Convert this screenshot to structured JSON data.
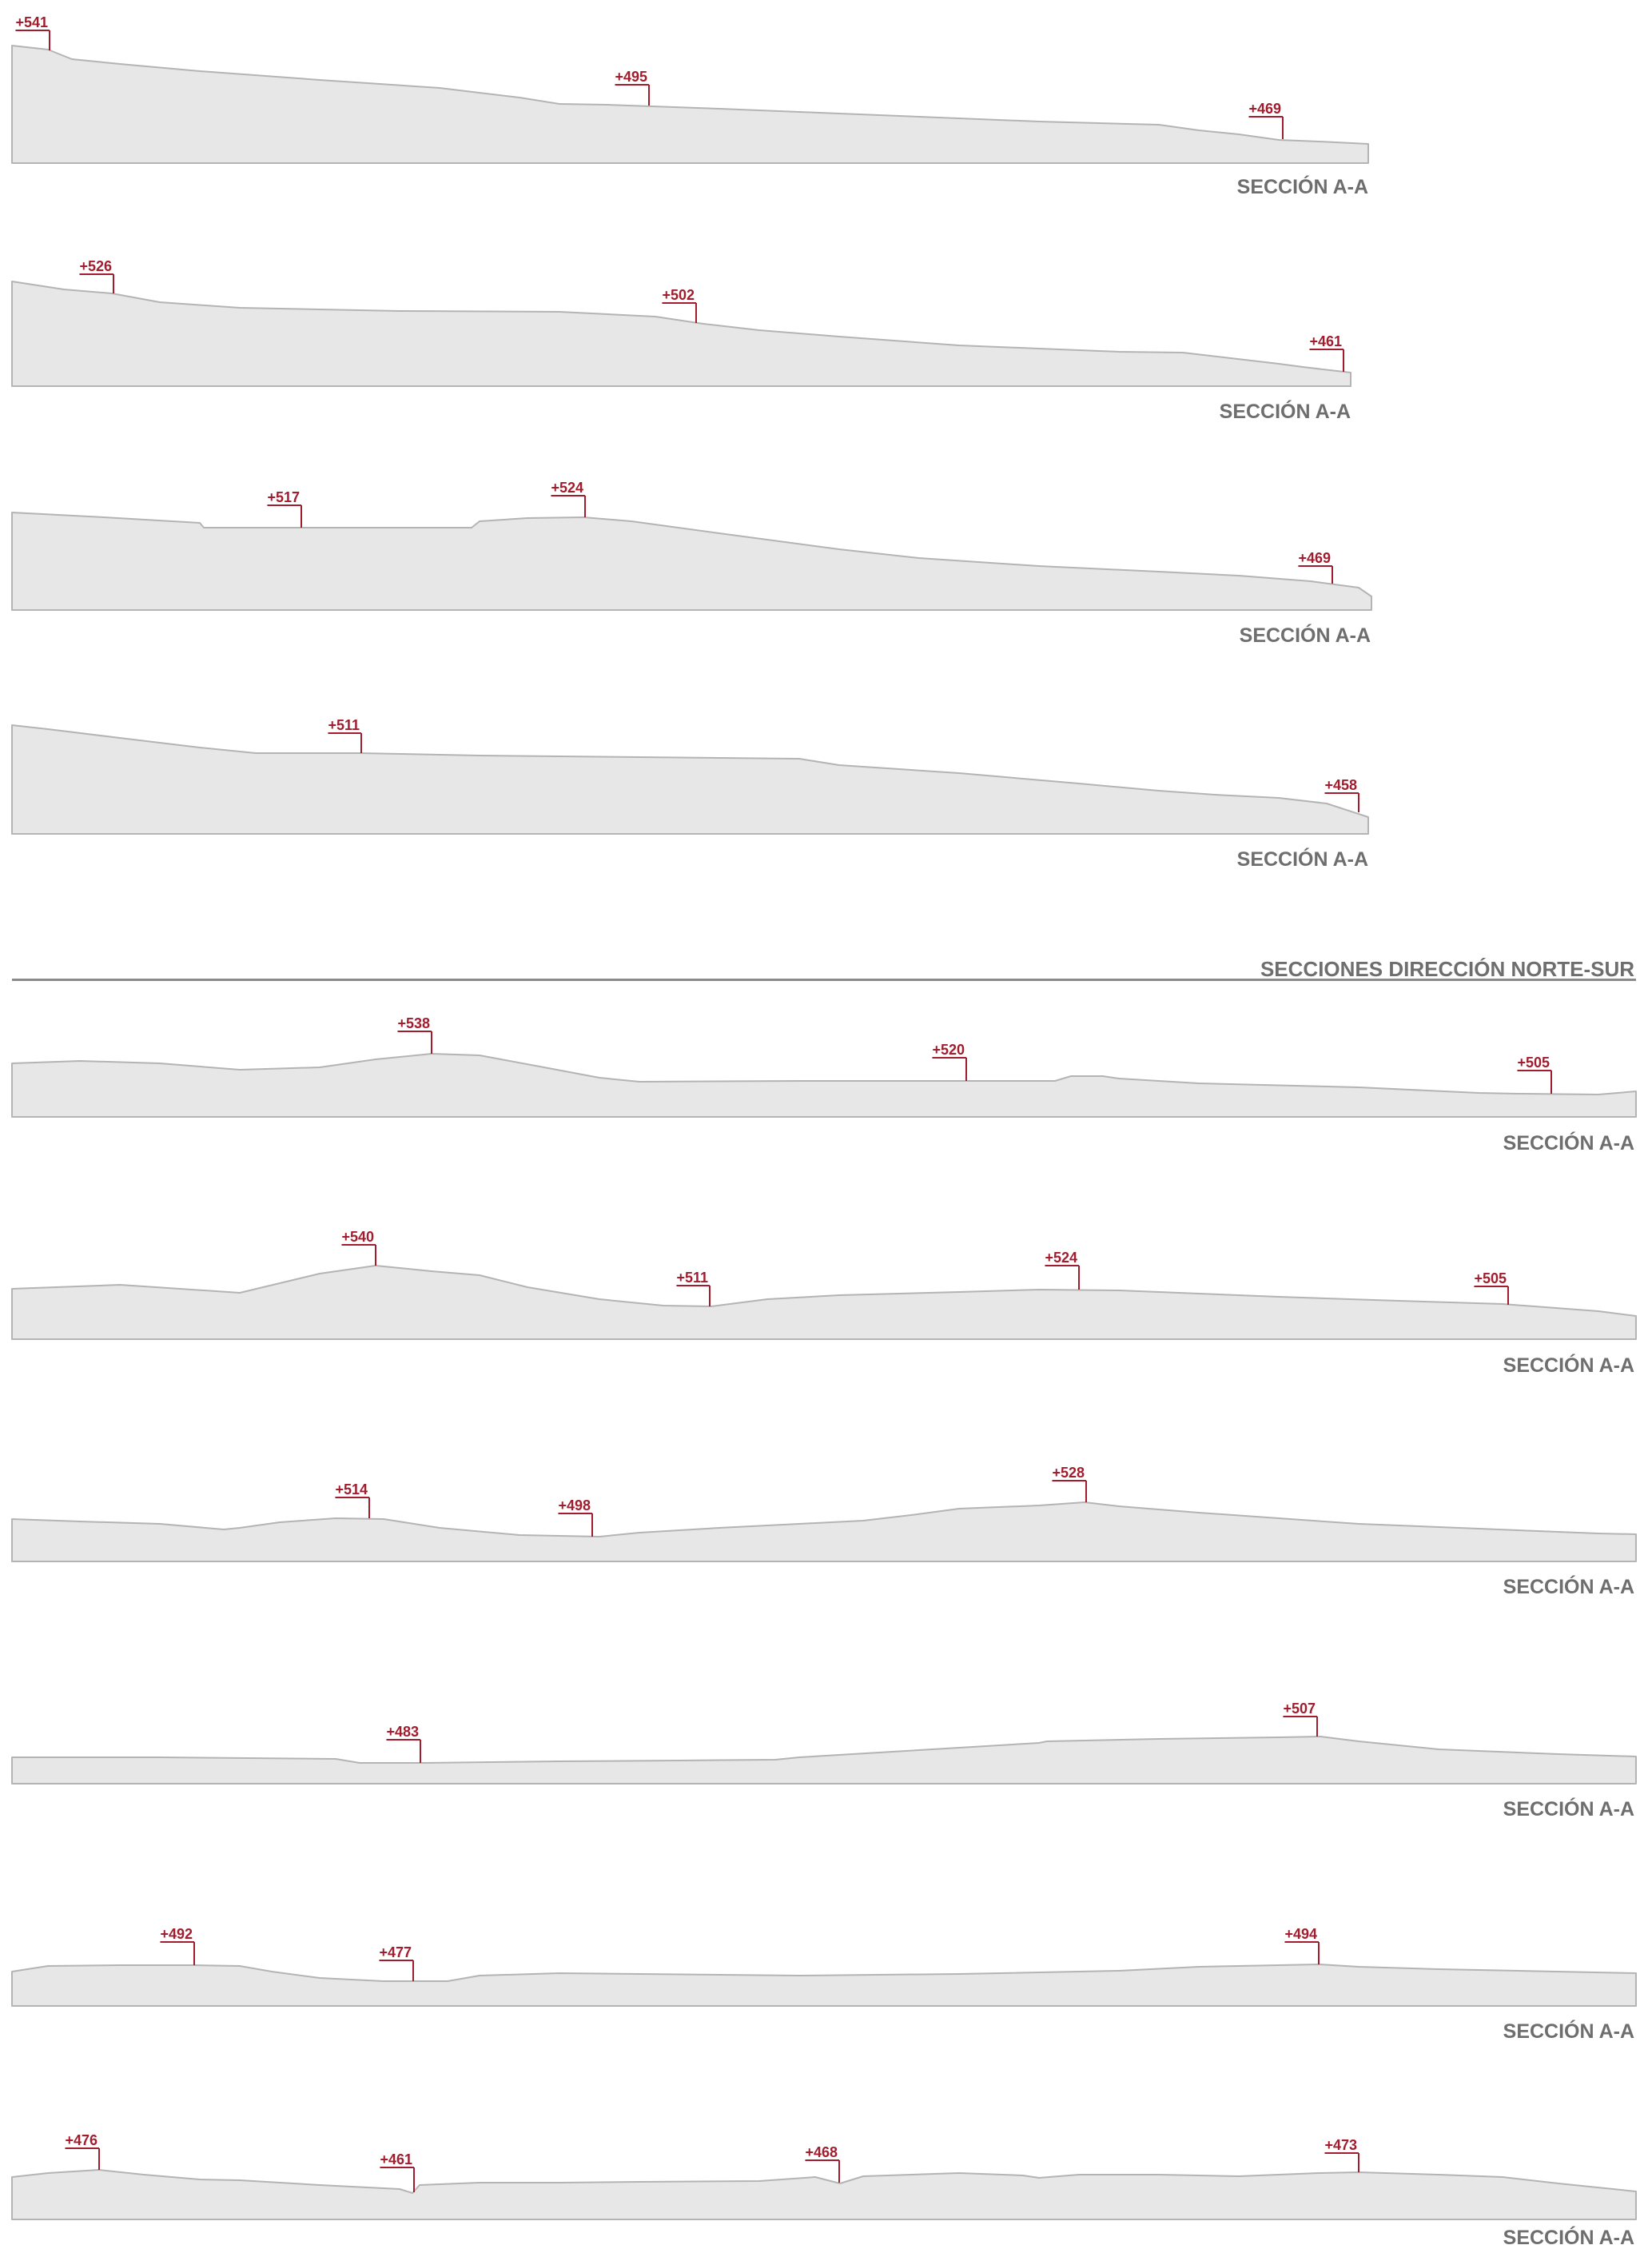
{
  "group_title": "SECCIONES DIRECCIÓN NORTE-SUR",
  "colors": {
    "terrain_fill": "#e7e7e8",
    "terrain_stroke": "#b4b4b4",
    "marker": "#a11d2e",
    "title": "#6e6e6e"
  },
  "sections": [
    {
      "title": "SECCIÓN A-A",
      "markers": [
        {
          "label": "+541"
        },
        {
          "label": "+495"
        },
        {
          "label": "+469"
        }
      ]
    },
    {
      "title": "SECCIÓN A-A",
      "markers": [
        {
          "label": "+526"
        },
        {
          "label": "+502"
        },
        {
          "label": "+461"
        }
      ]
    },
    {
      "title": "SECCIÓN A-A",
      "markers": [
        {
          "label": "+517"
        },
        {
          "label": "+524"
        },
        {
          "label": "+469"
        }
      ]
    },
    {
      "title": "SECCIÓN A-A",
      "markers": [
        {
          "label": "+511"
        },
        {
          "label": "+458"
        }
      ]
    },
    {
      "title": "SECCIÓN A-A",
      "markers": [
        {
          "label": "+538"
        },
        {
          "label": "+520"
        },
        {
          "label": "+505"
        }
      ]
    },
    {
      "title": "SECCIÓN A-A",
      "markers": [
        {
          "label": "+540"
        },
        {
          "label": "+511"
        },
        {
          "label": "+524"
        },
        {
          "label": "+505"
        }
      ]
    },
    {
      "title": "SECCIÓN A-A",
      "markers": [
        {
          "label": "+514"
        },
        {
          "label": "+498"
        },
        {
          "label": "+528"
        }
      ]
    },
    {
      "title": "SECCIÓN A-A",
      "markers": [
        {
          "label": "+483"
        },
        {
          "label": "+507"
        }
      ]
    },
    {
      "title": "SECCIÓN A-A",
      "markers": [
        {
          "label": "+492"
        },
        {
          "label": "+477"
        },
        {
          "label": "+494"
        }
      ]
    },
    {
      "title": "SECCIÓN A-A",
      "markers": [
        {
          "label": "+476"
        },
        {
          "label": "+461"
        },
        {
          "label": "+468"
        },
        {
          "label": "+473"
        }
      ]
    }
  ]
}
